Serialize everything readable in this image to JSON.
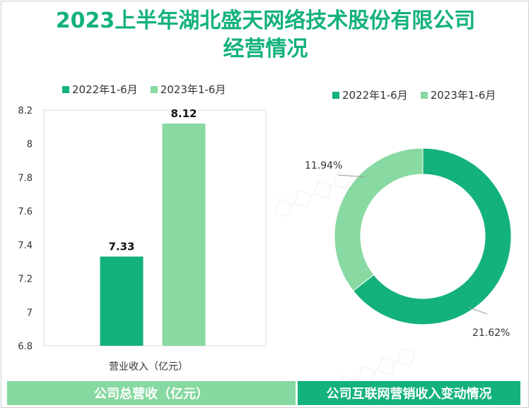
{
  "title_line1": "2023上半年湖北盛天网络技术股份有限公司",
  "title_line2": "经营情况",
  "colors": {
    "series_2022": "#13b27a",
    "series_2023": "#88d9a2"
  },
  "chart_data": [
    {
      "type": "bar",
      "categories": [
        "营业收入（亿元）"
      ],
      "series": [
        {
          "name": "2022年1-6月",
          "values": [
            7.33
          ]
        },
        {
          "name": "2023年1-6月",
          "values": [
            8.12
          ]
        }
      ],
      "data_labels": [
        "7.33",
        "8.12"
      ],
      "ylim": [
        6.8,
        8.2
      ],
      "yticks": [
        "8.2",
        "8",
        "7.8",
        "7.6",
        "7.4",
        "7.2",
        "7",
        "6.8"
      ],
      "xlabel": "营业收入（亿元）",
      "legend": "top-left",
      "caption": "公司总营收（亿元）"
    },
    {
      "type": "pie",
      "donut": true,
      "series": [
        {
          "name": "2022年1-6月",
          "value": 21.62,
          "label": "21.62%"
        },
        {
          "name": "2023年1-6月",
          "value": 11.94,
          "label": "11.94%"
        }
      ],
      "legend": "top-right",
      "caption": "公司互联网营销收入变动情况"
    }
  ]
}
